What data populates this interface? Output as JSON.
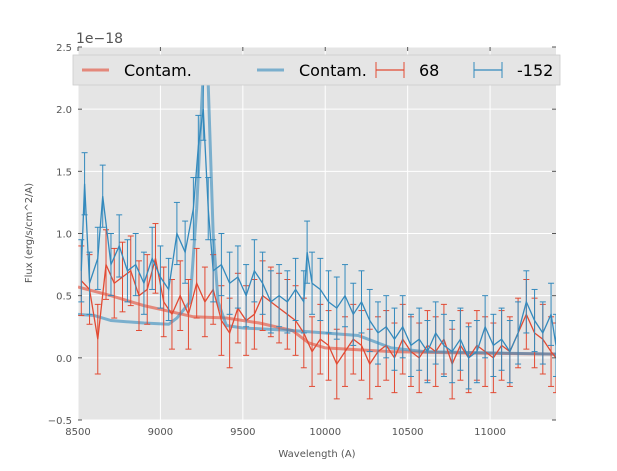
{
  "chart_data": {
    "type": "line",
    "title": "",
    "xlabel": "Wavelength (A)",
    "ylabel": "Flux (erg/s/cm^2/A)",
    "offset_text": "1e−18",
    "xlim": [
      8500,
      11400
    ],
    "ylim": [
      -0.5,
      2.5
    ],
    "xticks": [
      8500,
      9000,
      9500,
      10000,
      10500,
      11000
    ],
    "yticks": [
      -0.5,
      0.0,
      0.5,
      1.0,
      1.5,
      2.0,
      2.5
    ],
    "ytick_labels": [
      "−0.5",
      "0.0",
      "0.5",
      "1.0",
      "1.5",
      "2.0",
      "2.5"
    ],
    "grid": true,
    "legend_placement": "top",
    "colors": {
      "red": "#e24a33",
      "blue": "#348abd",
      "bg": "#e5e5e5"
    },
    "contam": [
      {
        "name": "Contam.",
        "color": "#e24a33",
        "x": [
          8500,
          8700,
          8900,
          9000,
          9200,
          9400,
          9600,
          9800,
          9900,
          10000,
          10400,
          10800,
          11400
        ],
        "y": [
          0.57,
          0.5,
          0.42,
          0.39,
          0.33,
          0.32,
          0.28,
          0.22,
          0.12,
          0.08,
          0.05,
          0.04,
          0.03
        ]
      },
      {
        "name": "Contam.",
        "color": "#348abd",
        "x": [
          8500,
          8600,
          8700,
          8900,
          9050,
          9100,
          9180,
          9220,
          9260,
          9290,
          9320,
          9350,
          9400,
          9500,
          9800,
          10000,
          10200,
          10400,
          10600,
          11000,
          11400
        ],
        "y": [
          0.35,
          0.34,
          0.3,
          0.28,
          0.27,
          0.32,
          0.45,
          1.2,
          2.3,
          2.2,
          1.0,
          0.45,
          0.26,
          0.24,
          0.22,
          0.2,
          0.18,
          0.08,
          0.05,
          0.04,
          0.03
        ]
      }
    ],
    "series": [
      {
        "name": "68",
        "color": "#e24a33",
        "yerr": 0.28,
        "x": [
          8520,
          8570,
          8620,
          8670,
          8720,
          8770,
          8820,
          8870,
          8920,
          8970,
          9020,
          9070,
          9120,
          9170,
          9220,
          9270,
          9320,
          9370,
          9420,
          9470,
          9520,
          9570,
          9620,
          9670,
          9720,
          9770,
          9820,
          9870,
          9920,
          9970,
          10020,
          10070,
          10120,
          10170,
          10220,
          10270,
          10320,
          10370,
          10420,
          10470,
          10520,
          10570,
          10620,
          10670,
          10720,
          10770,
          10820,
          10870,
          10920,
          10970,
          11020,
          11070,
          11120,
          11170,
          11220,
          11270,
          11320,
          11370,
          11400
        ],
        "y": [
          0.62,
          0.55,
          0.15,
          0.75,
          0.6,
          0.65,
          0.7,
          0.5,
          0.55,
          0.8,
          0.45,
          0.35,
          0.5,
          0.35,
          0.6,
          0.45,
          0.55,
          0.3,
          0.2,
          0.4,
          0.3,
          0.35,
          0.5,
          0.45,
          0.4,
          0.35,
          0.3,
          0.2,
          0.05,
          0.15,
          0.1,
          -0.05,
          0.05,
          0.15,
          0.1,
          -0.05,
          0.05,
          0.1,
          0.0,
          0.15,
          0.05,
          0.0,
          0.1,
          0.05,
          0.15,
          -0.05,
          0.1,
          0.0,
          0.1,
          0.05,
          0.0,
          0.1,
          0.05,
          0.2,
          0.35,
          0.2,
          0.15,
          0.05,
          0.0
        ]
      },
      {
        "name": "-152",
        "color": "#348abd",
        "yerr": 0.25,
        "x": [
          8520,
          8540,
          8570,
          8620,
          8650,
          8700,
          8750,
          8800,
          8850,
          8900,
          8950,
          9000,
          9050,
          9100,
          9150,
          9200,
          9230,
          9260,
          9290,
          9320,
          9370,
          9420,
          9470,
          9520,
          9570,
          9620,
          9670,
          9720,
          9770,
          9820,
          9870,
          9890,
          9920,
          9970,
          10020,
          10070,
          10120,
          10170,
          10220,
          10270,
          10320,
          10370,
          10420,
          10470,
          10520,
          10570,
          10620,
          10670,
          10720,
          10770,
          10820,
          10870,
          10920,
          10970,
          11020,
          11070,
          11120,
          11170,
          11220,
          11270,
          11320,
          11370,
          11400
        ],
        "y": [
          0.7,
          1.4,
          0.6,
          0.8,
          1.3,
          0.75,
          0.9,
          0.7,
          0.75,
          0.6,
          0.8,
          0.65,
          0.55,
          1.0,
          0.85,
          1.2,
          1.7,
          2.0,
          1.2,
          0.7,
          0.75,
          0.6,
          0.65,
          0.5,
          0.7,
          0.6,
          0.45,
          0.5,
          0.45,
          0.55,
          0.45,
          0.85,
          0.6,
          0.55,
          0.45,
          0.4,
          0.5,
          0.35,
          0.45,
          0.3,
          0.2,
          0.25,
          0.15,
          0.25,
          0.1,
          0.15,
          0.05,
          0.2,
          0.1,
          0.05,
          0.15,
          0.0,
          0.05,
          0.25,
          0.1,
          0.15,
          0.05,
          0.2,
          0.45,
          0.3,
          0.2,
          0.35,
          0.1
        ]
      }
    ]
  }
}
